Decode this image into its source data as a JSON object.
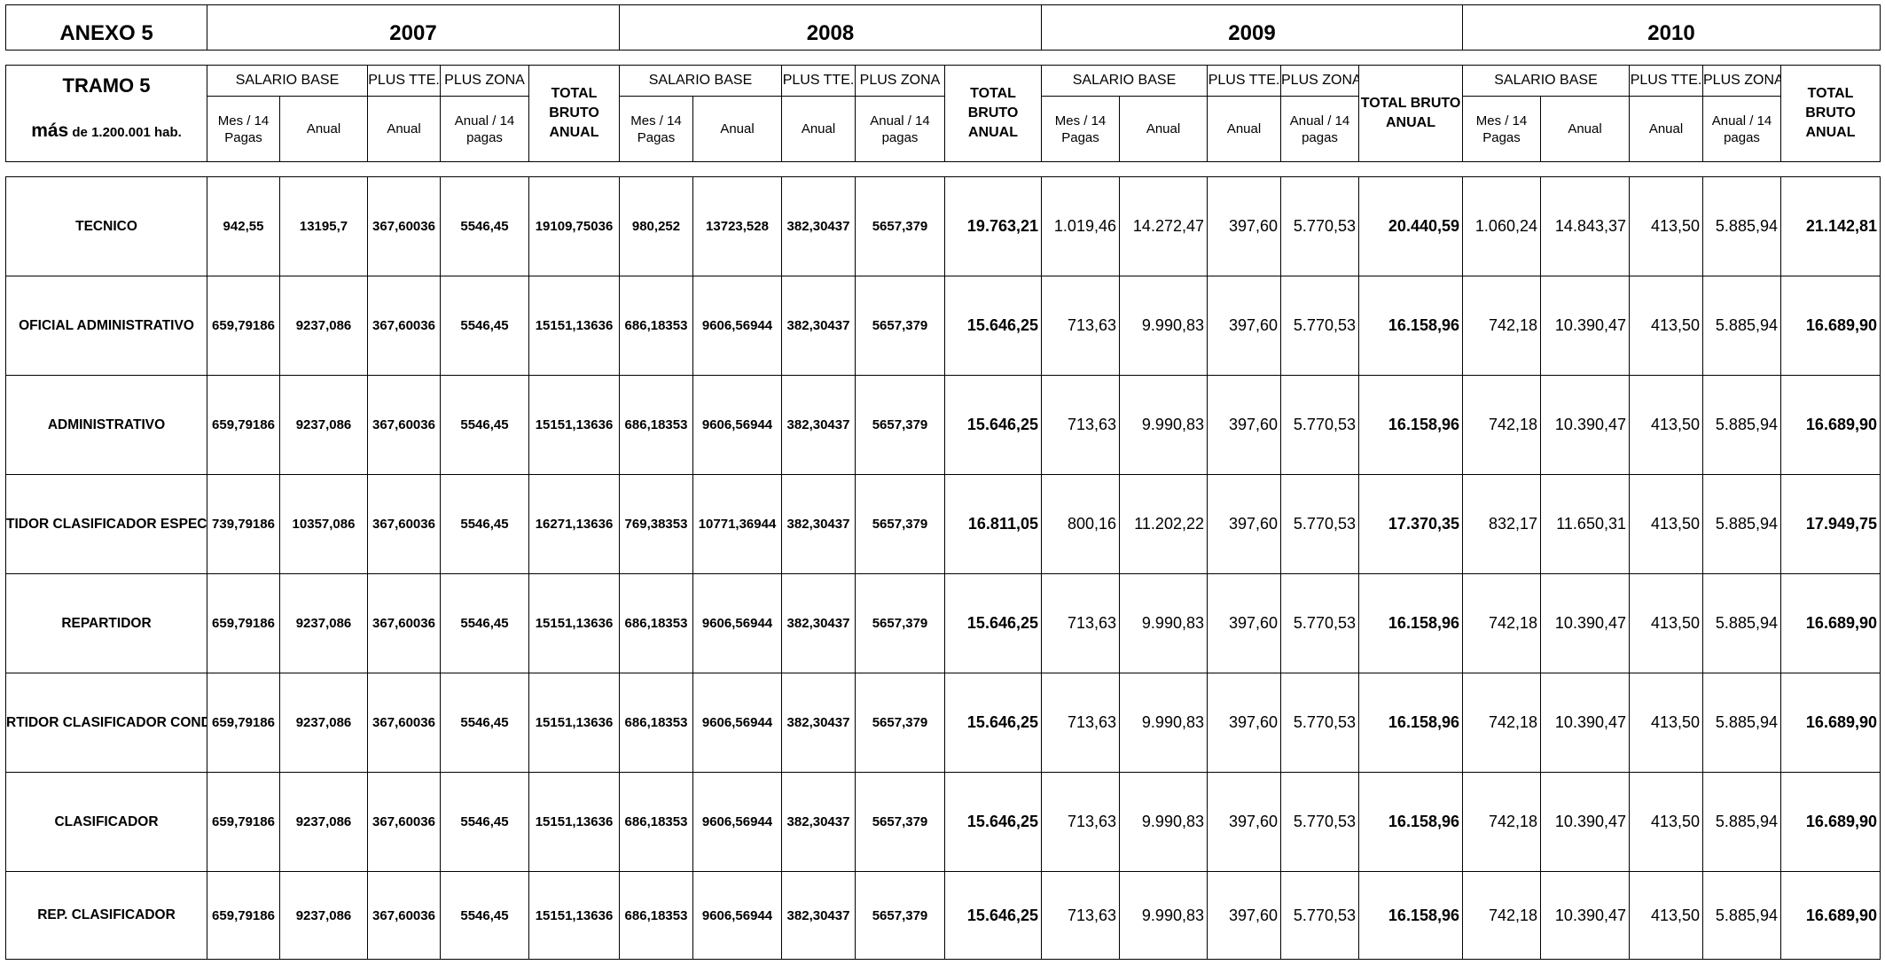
{
  "title_row": {
    "anexo": "ANEXO 5",
    "years": [
      "2007",
      "2008",
      "2009",
      "2010"
    ]
  },
  "header": {
    "tramo": "TRAMO 5",
    "tramo_more": "más",
    "tramo_rest": "de 1.200.001 hab.",
    "salario_base": "SALARIO BASE",
    "plus_tte": "PLUS TTE.",
    "plus_zona": "PLUS ZONA",
    "total_bruto_anual": "TOTAL BRUTO ANUAL",
    "mes_14_pagas": "Mes / 14 Pagas",
    "anual": "Anual",
    "anual_14_pagas": "Anual / 14 pagas"
  },
  "rows": [
    {
      "label": "TECNICO",
      "y2007": [
        "942,55",
        "13195,7",
        "367,60036",
        "5546,45",
        "19109,75036"
      ],
      "y2008": [
        "980,252",
        "13723,528",
        "382,30437",
        "5657,379",
        "19.763,21"
      ],
      "y2009": [
        "1.019,46",
        "14.272,47",
        "397,60",
        "5.770,53",
        "20.440,59"
      ],
      "y2010": [
        "1.060,24",
        "14.843,37",
        "413,50",
        "5.885,94",
        "21.142,81"
      ]
    },
    {
      "label": "OFICIAL ADMINISTRATIVO",
      "y2007": [
        "659,79186",
        "9237,086",
        "367,60036",
        "5546,45",
        "15151,13636"
      ],
      "y2008": [
        "686,18353",
        "9606,56944",
        "382,30437",
        "5657,379",
        "15.646,25"
      ],
      "y2009": [
        "713,63",
        "9.990,83",
        "397,60",
        "5.770,53",
        "16.158,96"
      ],
      "y2010": [
        "742,18",
        "10.390,47",
        "413,50",
        "5.885,94",
        "16.689,90"
      ]
    },
    {
      "label": "ADMINISTRATIVO",
      "y2007": [
        "659,79186",
        "9237,086",
        "367,60036",
        "5546,45",
        "15151,13636"
      ],
      "y2008": [
        "686,18353",
        "9606,56944",
        "382,30437",
        "5657,379",
        "15.646,25"
      ],
      "y2009": [
        "713,63",
        "9.990,83",
        "397,60",
        "5.770,53",
        "16.158,96"
      ],
      "y2010": [
        "742,18",
        "10.390,47",
        "413,50",
        "5.885,94",
        "16.689,90"
      ]
    },
    {
      "label": "TIDOR CLASIFICADOR ESPEC",
      "y2007": [
        "739,79186",
        "10357,086",
        "367,60036",
        "5546,45",
        "16271,13636"
      ],
      "y2008": [
        "769,38353",
        "10771,36944",
        "382,30437",
        "5657,379",
        "16.811,05"
      ],
      "y2009": [
        "800,16",
        "11.202,22",
        "397,60",
        "5.770,53",
        "17.370,35"
      ],
      "y2010": [
        "832,17",
        "11.650,31",
        "413,50",
        "5.885,94",
        "17.949,75"
      ]
    },
    {
      "label": "REPARTIDOR",
      "y2007": [
        "659,79186",
        "9237,086",
        "367,60036",
        "5546,45",
        "15151,13636"
      ],
      "y2008": [
        "686,18353",
        "9606,56944",
        "382,30437",
        "5657,379",
        "15.646,25"
      ],
      "y2009": [
        "713,63",
        "9.990,83",
        "397,60",
        "5.770,53",
        "16.158,96"
      ],
      "y2010": [
        "742,18",
        "10.390,47",
        "413,50",
        "5.885,94",
        "16.689,90"
      ]
    },
    {
      "label": "RTIDOR CLASIFICADOR CONDU",
      "y2007": [
        "659,79186",
        "9237,086",
        "367,60036",
        "5546,45",
        "15151,13636"
      ],
      "y2008": [
        "686,18353",
        "9606,56944",
        "382,30437",
        "5657,379",
        "15.646,25"
      ],
      "y2009": [
        "713,63",
        "9.990,83",
        "397,60",
        "5.770,53",
        "16.158,96"
      ],
      "y2010": [
        "742,18",
        "10.390,47",
        "413,50",
        "5.885,94",
        "16.689,90"
      ]
    },
    {
      "label": "CLASIFICADOR",
      "y2007": [
        "659,79186",
        "9237,086",
        "367,60036",
        "5546,45",
        "15151,13636"
      ],
      "y2008": [
        "686,18353",
        "9606,56944",
        "382,30437",
        "5657,379",
        "15.646,25"
      ],
      "y2009": [
        "713,63",
        "9.990,83",
        "397,60",
        "5.770,53",
        "16.158,96"
      ],
      "y2010": [
        "742,18",
        "10.390,47",
        "413,50",
        "5.885,94",
        "16.689,90"
      ]
    },
    {
      "label": "REP. CLASIFICADOR",
      "y2007": [
        "659,79186",
        "9237,086",
        "367,60036",
        "5546,45",
        "15151,13636"
      ],
      "y2008": [
        "686,18353",
        "9606,56944",
        "382,30437",
        "5657,379",
        "15.646,25"
      ],
      "y2009": [
        "713,63",
        "9.990,83",
        "397,60",
        "5.770,53",
        "16.158,96"
      ],
      "y2010": [
        "742,18",
        "10.390,47",
        "413,50",
        "5.885,94",
        "16.689,90"
      ]
    }
  ]
}
